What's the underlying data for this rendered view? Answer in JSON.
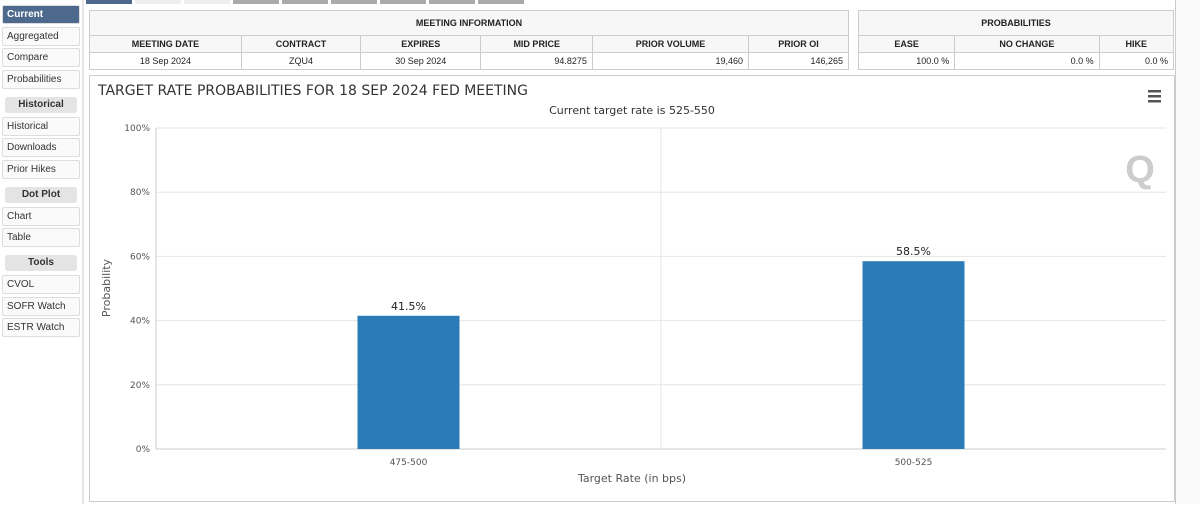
{
  "sidebar": {
    "groups": [
      {
        "title": "",
        "items": [
          "Current",
          "Aggregated",
          "Compare",
          "Probabilities"
        ]
      },
      {
        "title": "Historical",
        "items": [
          "Historical",
          "Downloads",
          "Prior Hikes"
        ]
      },
      {
        "title": "Dot Plot",
        "items": [
          "Chart",
          "Table"
        ]
      },
      {
        "title": "Tools",
        "items": [
          "CVOL",
          "SOFR Watch",
          "ESTR Watch"
        ]
      }
    ],
    "active": "Current"
  },
  "meeting": {
    "title": "MEETING INFORMATION",
    "headers": [
      "MEETING DATE",
      "CONTRACT",
      "EXPIRES",
      "MID PRICE",
      "PRIOR VOLUME",
      "PRIOR OI"
    ],
    "values": [
      "18 Sep 2024",
      "ZQU4",
      "30 Sep 2024",
      "94.8275",
      "19,460",
      "146,265"
    ]
  },
  "probs": {
    "title": "PROBABILITIES",
    "headers": [
      "EASE",
      "NO CHANGE",
      "HIKE"
    ],
    "values": [
      "100.0 %",
      "0.0 %",
      "0.0 %"
    ]
  },
  "chart_data": {
    "type": "bar",
    "title": "TARGET RATE PROBABILITIES FOR 18 SEP 2024 FED MEETING",
    "subtitle": "Current target rate is 525-550",
    "xlabel": "Target Rate (in bps)",
    "ylabel": "Probability",
    "categories": [
      "475-500",
      "500-525"
    ],
    "values": [
      41.5,
      58.5
    ],
    "data_labels": [
      "41.5%",
      "58.5%"
    ],
    "ylim": [
      0,
      100
    ],
    "yticks": [
      "0%",
      "20%",
      "40%",
      "60%",
      "80%",
      "100%"
    ],
    "grid": true,
    "bar_color": "#2b7bb9"
  }
}
